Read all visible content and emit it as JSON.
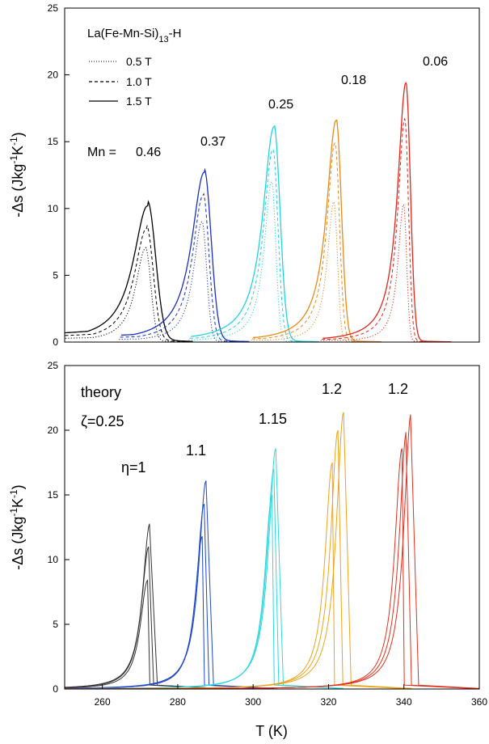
{
  "figure": {
    "xlabel": "T (K)",
    "top_ylabel": "-Δs (Jkg⁻¹K⁻¹)",
    "bottom_ylabel": "-Δs (Jkg⁻¹K⁻¹)"
  },
  "colors": {
    "mn_046": "#000000",
    "mn_037": "#1a2fbf",
    "mn_025": "#22d3e0",
    "mn_018": "#e98a1c",
    "mn_006": "#e1261c",
    "th_1": "#333333",
    "th_11": "#1f47c9",
    "th_115": "#2ed8e0",
    "th_12a": "#f0a21a",
    "th_12b": "#e1301e"
  },
  "chart_data": [
    {
      "type": "line",
      "panel": "top",
      "xlim": [
        250,
        360
      ],
      "ylim": [
        0,
        25
      ],
      "xticks": [
        260,
        280,
        300,
        320,
        340,
        360
      ],
      "yticks": [
        0,
        5,
        10,
        15,
        20,
        25
      ],
      "ylabel": "-Δs (Jkg⁻¹K⁻¹)",
      "material": "La(Fe-Mn-Si)",
      "material_sub": "13",
      "material_suffix": "-H",
      "mn_prefix": "Mn =",
      "legend": [
        {
          "label": "0.5 T",
          "style": "dotted"
        },
        {
          "label": "1.0 T",
          "style": "dashed"
        },
        {
          "label": "1.5 T",
          "style": "solid"
        }
      ],
      "groups": [
        {
          "label": "0.46",
          "color_key": "mn_046",
          "peak_T": 272,
          "peaks": [
            7.0,
            8.5,
            10.2
          ],
          "width": 3.0,
          "tail": 1.2
        },
        {
          "label": "0.37",
          "color_key": "mn_037",
          "peak_T": 287,
          "peaks": [
            9.0,
            11.0,
            12.7
          ],
          "width": 2.6,
          "tail": 0.9
        },
        {
          "label": "0.25",
          "color_key": "mn_025",
          "peak_T": 305.5,
          "peaks": [
            12.0,
            14.4,
            16.1
          ],
          "width": 2.3,
          "tail": 0.7
        },
        {
          "label": "0.18",
          "color_key": "mn_018",
          "peak_T": 322,
          "peaks": [
            10.5,
            14.9,
            16.6
          ],
          "width": 2.0,
          "tail": 0.6
        },
        {
          "label": "0.06",
          "color_key": "mn_006",
          "peak_T": 340.5,
          "peaks": [
            10.3,
            16.7,
            19.4
          ],
          "width": 1.7,
          "tail": 0.5
        }
      ]
    },
    {
      "type": "line",
      "panel": "bottom",
      "xlabel": "T (K)",
      "xlim": [
        250,
        360
      ],
      "ylim": [
        0,
        25
      ],
      "xticks": [
        260,
        280,
        300,
        320,
        340,
        360
      ],
      "yticks": [
        0,
        5,
        10,
        15,
        20,
        25
      ],
      "ylabel": "-Δs (Jkg⁻¹K⁻¹)",
      "theory_label": "theory",
      "zeta_label": "ζ=0.25",
      "groups": [
        {
          "label": "η=1",
          "color_key": "th_1",
          "peak_T": 272,
          "peaks": [
            8.4,
            11.0,
            12.8
          ],
          "shift": 0.3
        },
        {
          "label": "1.1",
          "color_key": "th_11",
          "peak_T": 286.5,
          "peaks": [
            11.8,
            14.3,
            16.1
          ],
          "shift": 0.5
        },
        {
          "label": "1.15",
          "color_key": "th_115",
          "peak_T": 305,
          "peaks": [
            15.0,
            17.0,
            18.6
          ],
          "shift": 0.5
        },
        {
          "label": "1.2",
          "color_key": "th_12a",
          "peak_T": 321,
          "peaks": [
            17.5,
            20.0,
            21.4
          ],
          "shift": 1.5
        },
        {
          "label": "1.2",
          "color_key": "th_12b",
          "peak_T": 339.5,
          "peaks": [
            18.6,
            20.0,
            21.3
          ],
          "shift": 1.2
        }
      ]
    }
  ]
}
